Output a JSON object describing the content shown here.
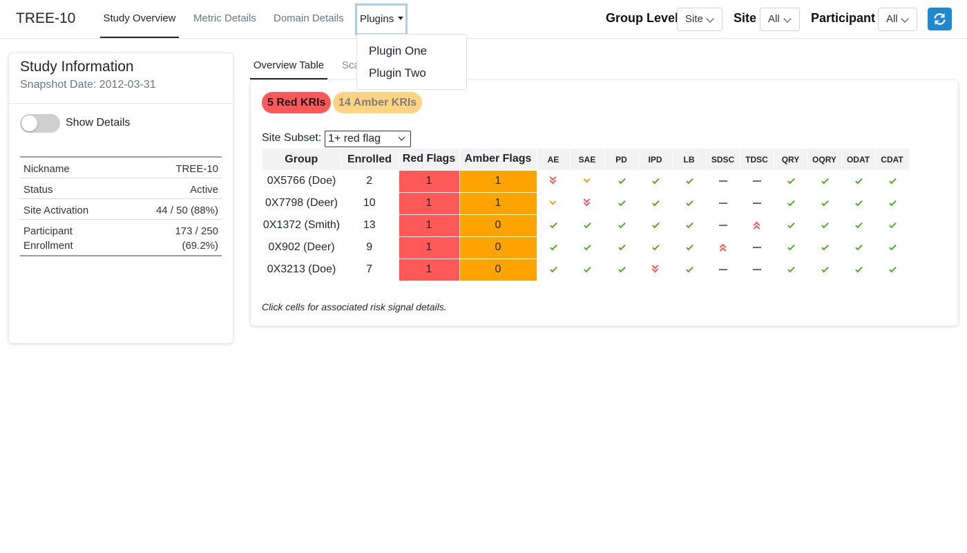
{
  "navbar": {
    "brand": "TREE-10",
    "tabs": [
      {
        "label": "Study Overview",
        "active": true
      },
      {
        "label": "Metric Details",
        "active": false
      },
      {
        "label": "Domain Details",
        "active": false
      }
    ],
    "plugins_label": "Plugins",
    "plugins_menu": [
      "Plugin One",
      "Plugin Two"
    ],
    "filters": {
      "group_level_label": "Group Level",
      "group_level_value": "Site",
      "site_label": "Site",
      "site_value": "All",
      "participant_label": "Participant",
      "participant_value": "All"
    },
    "refresh_icon": "refresh-icon"
  },
  "study_info": {
    "title": "Study Information",
    "snapshot": "Snapshot Date: 2012-03-31",
    "toggle_label": "Show Details",
    "toggle_on": false,
    "rows": [
      {
        "key": "Nickname",
        "value": "TREE-10"
      },
      {
        "key": "Status",
        "value": "Active"
      },
      {
        "key": "Site Activation",
        "value": "44 / 50 (88%)"
      },
      {
        "key": "Participant Enrollment",
        "value": "173 / 250 (69.2%)"
      }
    ]
  },
  "sub_tabs": [
    {
      "label": "Overview Table",
      "active": true
    },
    {
      "label": "Sca",
      "active": false
    }
  ],
  "overview": {
    "red_kri_label": "5 Red KRIs",
    "amber_kri_label": "14 Amber KRIs",
    "subset_label": "Site Subset:",
    "subset_value": "1+ red flag",
    "columns": [
      "Group",
      "Enrolled",
      "Red Flags",
      "Amber Flags"
    ],
    "metrics": [
      "AE",
      "SAE",
      "PD",
      "IPD",
      "LB",
      "SDSC",
      "TDSC",
      "QRY",
      "OQRY",
      "ODAT",
      "CDAT"
    ],
    "rows": [
      {
        "group": "0X5766 (Doe)",
        "enrolled": "2",
        "red": "1",
        "amber": "1",
        "flags": [
          "double-down",
          "single-down",
          "check",
          "check",
          "check",
          "dash",
          "dash",
          "check",
          "check",
          "check",
          "check"
        ]
      },
      {
        "group": "0X7798 (Deer)",
        "enrolled": "10",
        "red": "1",
        "amber": "1",
        "flags": [
          "single-down",
          "double-down",
          "check",
          "check",
          "check",
          "dash",
          "dash",
          "check",
          "check",
          "check",
          "check"
        ]
      },
      {
        "group": "0X1372 (Smith)",
        "enrolled": "13",
        "red": "1",
        "amber": "0",
        "flags": [
          "check",
          "check",
          "check",
          "check",
          "check",
          "dash",
          "double-up",
          "check",
          "check",
          "check",
          "check"
        ]
      },
      {
        "group": "0X902 (Deer)",
        "enrolled": "9",
        "red": "1",
        "amber": "0",
        "flags": [
          "check",
          "check",
          "check",
          "check",
          "check",
          "double-up",
          "dash",
          "check",
          "check",
          "check",
          "check"
        ]
      },
      {
        "group": "0X3213 (Doe)",
        "enrolled": "7",
        "red": "1",
        "amber": "0",
        "flags": [
          "check",
          "check",
          "check",
          "double-down",
          "check",
          "dash",
          "dash",
          "check",
          "check",
          "check",
          "check"
        ]
      }
    ],
    "footnote": "Click cells for associated risk signal details."
  },
  "colors": {
    "red_flag": "#ff5859",
    "amber_flag": "#fea400",
    "check": "#52a81f",
    "accent": "#1f88d2"
  }
}
